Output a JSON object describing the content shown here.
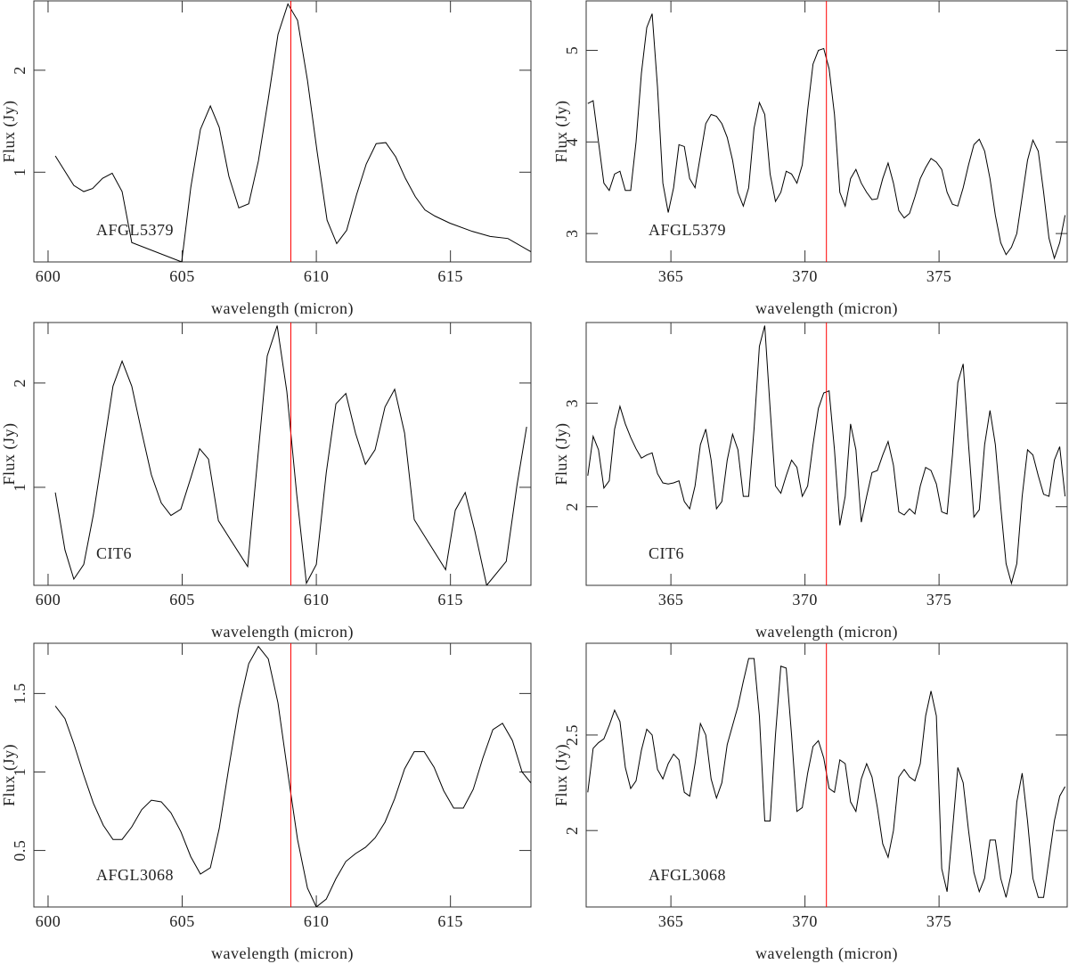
{
  "chart_data": [
    {
      "type": "line",
      "x_label": "wavelength (micron)",
      "y_label": "Flux (Jy)",
      "annotation": "AFGL5379",
      "xlim": [
        599.47,
        618.0
      ],
      "xticks": [
        600,
        605,
        610,
        615
      ],
      "ylim": [
        0.12,
        2.68
      ],
      "yticks": [
        1,
        2
      ],
      "vline": 609.05,
      "vline_color": "#ff0000",
      "color": "#000000",
      "x": [
        600.27,
        600.96,
        601.33,
        601.66,
        602.03,
        602.39,
        602.76,
        603.12,
        604.98,
        605.32,
        605.68,
        606.05,
        606.38,
        606.74,
        607.11,
        607.48,
        607.84,
        608.21,
        608.57,
        608.94,
        609.3,
        609.67,
        610.03,
        610.4,
        610.76,
        611.13,
        611.5,
        611.86,
        612.23,
        612.59,
        612.96,
        613.32,
        613.69,
        614.05,
        614.42,
        614.98,
        615.81,
        616.48,
        617.14,
        618.0
      ],
      "values": [
        1.16,
        0.87,
        0.81,
        0.84,
        0.94,
        0.99,
        0.81,
        0.31,
        0.12,
        0.85,
        1.42,
        1.65,
        1.44,
        0.96,
        0.65,
        0.69,
        1.11,
        1.72,
        2.35,
        2.65,
        2.49,
        1.9,
        1.2,
        0.53,
        0.3,
        0.43,
        0.78,
        1.08,
        1.28,
        1.29,
        1.15,
        0.94,
        0.76,
        0.63,
        0.57,
        0.5,
        0.42,
        0.37,
        0.35,
        0.22
      ]
    },
    {
      "type": "line",
      "x_label": "wavelength (micron)",
      "y_label": "Flux (Jy)",
      "annotation": "AFGL5379",
      "xlim": [
        361.84,
        379.78
      ],
      "xticks": [
        365,
        370,
        375
      ],
      "ylim": [
        2.69,
        5.54
      ],
      "yticks": [
        3,
        4,
        5
      ],
      "vline": 370.8,
      "vline_color": "#ff0000",
      "color": "#000000",
      "x": [
        361.9,
        362.1,
        362.3,
        362.5,
        362.7,
        362.9,
        363.1,
        363.3,
        363.5,
        363.7,
        363.9,
        364.1,
        364.3,
        364.5,
        364.7,
        364.9,
        365.1,
        365.3,
        365.5,
        365.7,
        365.9,
        366.1,
        366.3,
        366.5,
        366.7,
        366.9,
        367.1,
        367.3,
        367.5,
        367.7,
        367.9,
        368.1,
        368.3,
        368.5,
        368.7,
        368.9,
        369.1,
        369.3,
        369.5,
        369.7,
        369.9,
        370.1,
        370.3,
        370.5,
        370.7,
        370.9,
        371.1,
        371.3,
        371.5,
        371.7,
        371.9,
        372.1,
        372.3,
        372.5,
        372.7,
        372.9,
        373.1,
        373.3,
        373.5,
        373.7,
        373.9,
        374.1,
        374.3,
        374.5,
        374.7,
        374.9,
        375.1,
        375.3,
        375.5,
        375.7,
        375.9,
        376.1,
        376.3,
        376.5,
        376.7,
        376.9,
        377.1,
        377.3,
        377.5,
        377.7,
        377.9,
        378.1,
        378.3,
        378.5,
        378.7,
        378.9,
        379.1,
        379.3,
        379.5,
        379.7
      ],
      "values": [
        4.42,
        4.45,
        4.0,
        3.55,
        3.47,
        3.65,
        3.68,
        3.47,
        3.47,
        4.0,
        4.75,
        5.25,
        5.4,
        4.6,
        3.55,
        3.23,
        3.5,
        3.97,
        3.95,
        3.6,
        3.5,
        3.85,
        4.2,
        4.3,
        4.28,
        4.2,
        4.05,
        3.8,
        3.45,
        3.3,
        3.5,
        4.15,
        4.43,
        4.3,
        3.65,
        3.35,
        3.45,
        3.68,
        3.65,
        3.55,
        3.75,
        4.35,
        4.85,
        5.0,
        5.02,
        4.8,
        4.3,
        3.45,
        3.3,
        3.6,
        3.7,
        3.55,
        3.45,
        3.37,
        3.38,
        3.6,
        3.77,
        3.55,
        3.25,
        3.17,
        3.22,
        3.4,
        3.6,
        3.72,
        3.82,
        3.78,
        3.7,
        3.45,
        3.32,
        3.3,
        3.5,
        3.75,
        3.97,
        4.03,
        3.9,
        3.6,
        3.2,
        2.9,
        2.77,
        2.85,
        3.0,
        3.4,
        3.8,
        4.02,
        3.9,
        3.45,
        2.95,
        2.73,
        2.9,
        3.2
      ]
    },
    {
      "type": "line",
      "x_label": "wavelength (micron)",
      "y_label": "Flux (Jy)",
      "annotation": "CIT6",
      "xlim": [
        599.47,
        618.0
      ],
      "xticks": [
        600,
        605,
        610,
        615
      ],
      "ylim": [
        0.06,
        2.58
      ],
      "yticks": [
        1,
        2
      ],
      "vline": 609.05,
      "vline_color": "#ff0000",
      "color": "#000000",
      "x": [
        600.27,
        600.63,
        600.96,
        601.33,
        601.69,
        602.06,
        602.42,
        602.76,
        603.12,
        603.49,
        603.85,
        604.22,
        604.58,
        604.95,
        605.32,
        605.65,
        605.98,
        606.35,
        607.44,
        608.17,
        608.54,
        608.9,
        609.27,
        609.63,
        610.0,
        610.37,
        610.73,
        611.1,
        611.46,
        611.83,
        612.19,
        612.56,
        612.92,
        613.29,
        613.65,
        614.82,
        615.18,
        615.55,
        615.91,
        616.35,
        617.08,
        617.48,
        617.84
      ],
      "values": [
        0.95,
        0.4,
        0.12,
        0.26,
        0.74,
        1.36,
        1.97,
        2.21,
        1.97,
        1.53,
        1.12,
        0.85,
        0.73,
        0.79,
        1.09,
        1.37,
        1.27,
        0.68,
        0.24,
        2.26,
        2.55,
        1.92,
        0.93,
        0.08,
        0.26,
        1.14,
        1.8,
        1.9,
        1.52,
        1.22,
        1.36,
        1.77,
        1.94,
        1.52,
        0.69,
        0.21,
        0.78,
        0.95,
        0.58,
        0.06,
        0.29,
        1.02,
        1.58
      ]
    },
    {
      "type": "line",
      "x_label": "wavelength (micron)",
      "y_label": "Flux (Jy)",
      "annotation": "CIT6",
      "xlim": [
        361.84,
        379.78
      ],
      "xticks": [
        365,
        370,
        375
      ],
      "ylim": [
        1.24,
        3.78
      ],
      "yticks": [
        2,
        3
      ],
      "vline": 370.8,
      "vline_color": "#ff0000",
      "color": "#000000",
      "x": [
        361.9,
        362.1,
        362.3,
        362.5,
        362.7,
        362.9,
        363.1,
        363.3,
        363.5,
        363.7,
        363.9,
        364.1,
        364.3,
        364.5,
        364.7,
        364.9,
        365.1,
        365.3,
        365.5,
        365.7,
        365.9,
        366.1,
        366.3,
        366.5,
        366.7,
        366.9,
        367.1,
        367.3,
        367.5,
        367.7,
        367.9,
        368.1,
        368.3,
        368.5,
        368.7,
        368.9,
        369.1,
        369.3,
        369.5,
        369.7,
        369.9,
        370.1,
        370.3,
        370.5,
        370.7,
        370.9,
        371.1,
        371.3,
        371.5,
        371.7,
        371.9,
        372.1,
        372.3,
        372.5,
        372.7,
        372.9,
        373.1,
        373.3,
        373.5,
        373.7,
        373.9,
        374.1,
        374.3,
        374.5,
        374.7,
        374.9,
        375.1,
        375.3,
        375.5,
        375.7,
        375.9,
        376.1,
        376.3,
        376.5,
        376.7,
        376.9,
        377.1,
        377.3,
        377.5,
        377.7,
        377.9,
        378.1,
        378.3,
        378.5,
        378.7,
        378.9,
        379.1,
        379.3,
        379.5,
        379.7
      ],
      "values": [
        2.3,
        2.68,
        2.55,
        2.18,
        2.25,
        2.75,
        2.97,
        2.8,
        2.67,
        2.56,
        2.47,
        2.5,
        2.52,
        2.32,
        2.23,
        2.22,
        2.23,
        2.25,
        2.05,
        1.98,
        2.2,
        2.6,
        2.75,
        2.45,
        1.98,
        2.05,
        2.45,
        2.7,
        2.55,
        2.1,
        2.1,
        2.75,
        3.55,
        3.75,
        2.95,
        2.2,
        2.13,
        2.3,
        2.45,
        2.38,
        2.1,
        2.2,
        2.6,
        2.95,
        3.1,
        3.12,
        2.55,
        1.82,
        2.1,
        2.8,
        2.55,
        1.85,
        2.1,
        2.33,
        2.35,
        2.5,
        2.63,
        2.4,
        1.95,
        1.92,
        1.98,
        1.93,
        2.2,
        2.38,
        2.35,
        2.22,
        1.95,
        1.93,
        2.5,
        3.2,
        3.38,
        2.6,
        1.9,
        1.97,
        2.6,
        2.93,
        2.6,
        2.0,
        1.45,
        1.26,
        1.45,
        2.1,
        2.55,
        2.5,
        2.3,
        2.12,
        2.1,
        2.45,
        2.58,
        2.1
      ]
    },
    {
      "type": "line",
      "x_label": "wavelength (micron)",
      "y_label": "Flux (Jy)",
      "annotation": "AFGL3068",
      "xlim": [
        599.47,
        618.0
      ],
      "xticks": [
        600,
        605,
        610,
        615
      ],
      "ylim": [
        0.14,
        1.82
      ],
      "yticks": [
        0.5,
        1,
        1.5
      ],
      "vline": 609.05,
      "vline_color": "#ff0000",
      "color": "#000000",
      "x": [
        600.27,
        600.63,
        600.96,
        601.33,
        601.69,
        602.06,
        602.42,
        602.76,
        603.12,
        603.49,
        603.85,
        604.22,
        604.58,
        604.95,
        605.32,
        605.68,
        606.05,
        606.38,
        606.74,
        607.11,
        607.48,
        607.84,
        608.21,
        608.57,
        608.94,
        609.3,
        609.67,
        610.0,
        610.37,
        610.73,
        611.1,
        611.46,
        611.83,
        612.19,
        612.56,
        612.92,
        613.29,
        613.65,
        614.02,
        614.39,
        614.75,
        615.12,
        615.48,
        615.85,
        616.21,
        616.58,
        616.94,
        617.31,
        617.67,
        618.0
      ],
      "values": [
        1.42,
        1.34,
        1.18,
        0.98,
        0.8,
        0.66,
        0.57,
        0.57,
        0.65,
        0.76,
        0.82,
        0.81,
        0.74,
        0.62,
        0.46,
        0.35,
        0.39,
        0.64,
        1.03,
        1.41,
        1.69,
        1.8,
        1.72,
        1.44,
        0.99,
        0.57,
        0.26,
        0.14,
        0.19,
        0.32,
        0.43,
        0.48,
        0.52,
        0.58,
        0.68,
        0.83,
        1.02,
        1.13,
        1.13,
        1.03,
        0.88,
        0.77,
        0.77,
        0.89,
        1.09,
        1.27,
        1.31,
        1.2,
        1.0,
        0.93
      ]
    },
    {
      "type": "line",
      "x_label": "wavelength (micron)",
      "y_label": "Flux (Jy)",
      "annotation": "AFGL3068",
      "xlim": [
        361.84,
        379.78
      ],
      "xticks": [
        365,
        370,
        375
      ],
      "ylim": [
        1.6,
        2.98
      ],
      "yticks": [
        2,
        2.5
      ],
      "vline": 370.8,
      "vline_color": "#ff0000",
      "color": "#000000",
      "x": [
        361.9,
        362.1,
        362.3,
        362.5,
        362.7,
        362.9,
        363.1,
        363.3,
        363.5,
        363.7,
        363.9,
        364.1,
        364.3,
        364.5,
        364.7,
        364.9,
        365.1,
        365.3,
        365.5,
        365.7,
        365.9,
        366.1,
        366.3,
        366.5,
        366.7,
        366.9,
        367.1,
        367.3,
        367.5,
        367.7,
        367.9,
        368.1,
        368.3,
        368.5,
        368.7,
        368.9,
        369.1,
        369.3,
        369.5,
        369.7,
        369.9,
        370.1,
        370.3,
        370.5,
        370.7,
        370.9,
        371.1,
        371.3,
        371.5,
        371.7,
        371.9,
        372.1,
        372.3,
        372.5,
        372.7,
        372.9,
        373.1,
        373.3,
        373.5,
        373.7,
        373.9,
        374.1,
        374.3,
        374.5,
        374.7,
        374.9,
        375.1,
        375.3,
        375.5,
        375.7,
        375.9,
        376.1,
        376.3,
        376.5,
        376.7,
        376.9,
        377.1,
        377.3,
        377.5,
        377.7,
        377.9,
        378.1,
        378.3,
        378.5,
        378.7,
        378.9,
        379.1,
        379.3,
        379.5,
        379.7
      ],
      "values": [
        2.2,
        2.43,
        2.46,
        2.48,
        2.55,
        2.63,
        2.57,
        2.33,
        2.22,
        2.26,
        2.42,
        2.53,
        2.5,
        2.32,
        2.27,
        2.35,
        2.4,
        2.37,
        2.2,
        2.18,
        2.35,
        2.56,
        2.5,
        2.27,
        2.17,
        2.25,
        2.45,
        2.55,
        2.65,
        2.78,
        2.9,
        2.9,
        2.6,
        2.05,
        2.05,
        2.5,
        2.86,
        2.85,
        2.5,
        2.1,
        2.12,
        2.3,
        2.44,
        2.47,
        2.38,
        2.22,
        2.2,
        2.37,
        2.35,
        2.15,
        2.1,
        2.27,
        2.35,
        2.28,
        2.12,
        1.93,
        1.86,
        2.0,
        2.28,
        2.32,
        2.28,
        2.26,
        2.35,
        2.6,
        2.73,
        2.6,
        1.8,
        1.68,
        2.0,
        2.33,
        2.25,
        2.0,
        1.78,
        1.68,
        1.75,
        1.95,
        1.95,
        1.75,
        1.65,
        1.78,
        2.15,
        2.3,
        2.05,
        1.75,
        1.65,
        1.65,
        1.85,
        2.05,
        2.18,
        2.23
      ]
    }
  ]
}
